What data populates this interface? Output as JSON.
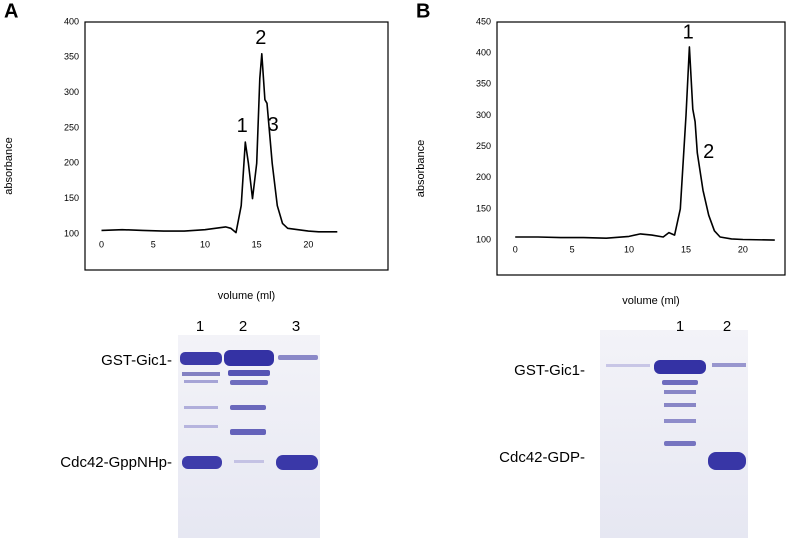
{
  "panel_labels": [
    "A",
    "B"
  ],
  "chart_data": [
    {
      "type": "line",
      "xlabel": "volume (ml)",
      "ylabel": "absorbance",
      "x": [
        0,
        2,
        4,
        6,
        8,
        10,
        11,
        12,
        12.5,
        13,
        13.5,
        13.9,
        14.2,
        14.6,
        15,
        15.3,
        15.5,
        15.8,
        16,
        16.5,
        17,
        17.5,
        18,
        19,
        20,
        21,
        22.8
      ],
      "series": [
        {
          "color": "#000000",
          "values": [
            105,
            106,
            105,
            104,
            104,
            106,
            108,
            110,
            108,
            102,
            140,
            230,
            200,
            150,
            200,
            320,
            355,
            290,
            285,
            200,
            140,
            115,
            108,
            106,
            104,
            103,
            103
          ]
        }
      ],
      "xlim": [
        -1.6,
        27.7
      ],
      "xticks": [
        0,
        5,
        10,
        15,
        20
      ],
      "ylim": [
        49,
        400
      ],
      "yticks": [
        100,
        150,
        200,
        250,
        300,
        350,
        400
      ],
      "annotations": [
        {
          "text": "1",
          "x": 13.6,
          "y": 252
        },
        {
          "text": "2",
          "x": 15.4,
          "y": 376
        },
        {
          "text": "3",
          "x": 16.6,
          "y": 253
        }
      ]
    },
    {
      "type": "line",
      "xlabel": "volume (ml)",
      "ylabel": "absorbance",
      "x": [
        0,
        2,
        4,
        6,
        8,
        10,
        11,
        12,
        13,
        13.5,
        14,
        14.5,
        15,
        15.3,
        15.6,
        15.8,
        16,
        16.5,
        17,
        17.5,
        18,
        19,
        20,
        22.8
      ],
      "series": [
        {
          "color": "#000000",
          "values": [
            105,
            105,
            104,
            104,
            103,
            106,
            110,
            108,
            105,
            112,
            108,
            150,
            300,
            410,
            310,
            290,
            240,
            180,
            140,
            115,
            105,
            102,
            101,
            100
          ]
        }
      ],
      "xlim": [
        -1.6,
        23.7
      ],
      "xticks": [
        0,
        5,
        10,
        15,
        20
      ],
      "ylim": [
        44,
        450
      ],
      "yticks": [
        100,
        150,
        200,
        250,
        300,
        350,
        400,
        450
      ],
      "annotations": [
        {
          "text": "1",
          "x": 15.2,
          "y": 432
        },
        {
          "text": "2",
          "x": 17,
          "y": 240
        }
      ]
    }
  ],
  "gels": [
    {
      "lanes": [
        "1",
        "2",
        "3"
      ],
      "bands": [
        "GST-Gic1-",
        "Cdc42-GppNHp-"
      ]
    },
    {
      "lanes": [
        "1",
        "2"
      ],
      "bands": [
        "GST-Gic1-",
        "Cdc42-GDP-"
      ]
    }
  ]
}
